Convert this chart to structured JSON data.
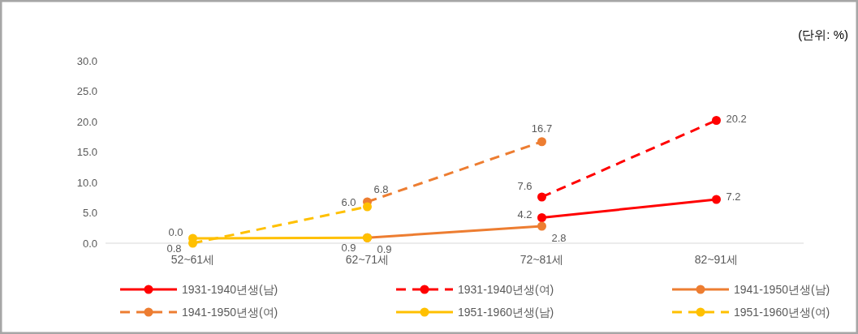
{
  "chart_data": {
    "type": "line",
    "annotations": [
      "(단위: %)"
    ],
    "categories": [
      "52~61세",
      "62~71세",
      "72~81세",
      "82~91세"
    ],
    "ylim": [
      0,
      30
    ],
    "yticks": [
      {
        "value": 0,
        "label": "0.0"
      },
      {
        "value": 5,
        "label": "5.0"
      },
      {
        "value": 10,
        "label": "10.0"
      },
      {
        "value": 15,
        "label": "15.0"
      },
      {
        "value": 20,
        "label": "20.0"
      },
      {
        "value": 25,
        "label": "25.0"
      },
      {
        "value": 30,
        "label": "30.0"
      }
    ],
    "grid": false,
    "legend": "bottom",
    "marker": "circle",
    "series": [
      {
        "name": "1931-1940년생(남)",
        "color": "#ff0000",
        "line_style": "solid",
        "values": [
          null,
          null,
          4.2,
          7.2
        ],
        "value_labels": [
          null,
          null,
          "4.2",
          "7.2"
        ]
      },
      {
        "name": "1931-1940년생(여)",
        "color": "#ff0000",
        "line_style": "dashed",
        "values": [
          null,
          null,
          7.6,
          20.2
        ],
        "value_labels": [
          null,
          null,
          "7.6",
          "20.2"
        ]
      },
      {
        "name": "1941-1950년생(남)",
        "color": "#ed7d31",
        "line_style": "solid",
        "values": [
          null,
          0.9,
          2.8,
          null
        ],
        "value_labels": [
          null,
          "0.9",
          "2.8",
          null
        ]
      },
      {
        "name": "1941-1950년생(여)",
        "color": "#ed7d31",
        "line_style": "dashed",
        "values": [
          null,
          6.8,
          16.7,
          null
        ],
        "value_labels": [
          null,
          "6.8",
          "16.7",
          null
        ]
      },
      {
        "name": "1951-1960년생(남)",
        "color": "#ffc000",
        "line_style": "solid",
        "values": [
          0.8,
          0.9,
          null,
          null
        ],
        "value_labels": [
          "0.8",
          "0.9",
          null,
          null
        ]
      },
      {
        "name": "1951-1960년생(여)",
        "color": "#ffc000",
        "line_style": "dashed",
        "values": [
          0.0,
          6.0,
          null,
          null
        ],
        "value_labels": [
          "0.0",
          "6.0",
          null,
          null
        ]
      }
    ]
  }
}
